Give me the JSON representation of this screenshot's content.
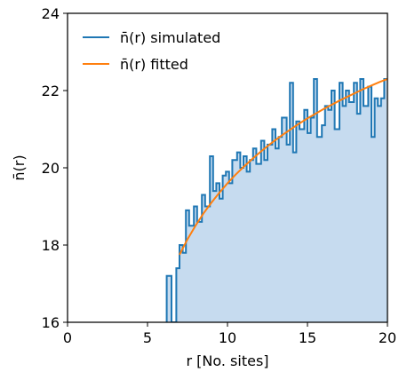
{
  "chart_data": {
    "type": "line",
    "title": "",
    "xlabel": "r [No. sites]",
    "ylabel": "n̄(r)",
    "xlim": [
      0,
      20
    ],
    "ylim": [
      16,
      24
    ],
    "xticks": [
      0,
      5,
      10,
      15,
      20
    ],
    "yticks": [
      16,
      18,
      20,
      22,
      24
    ],
    "xtick_labels": [
      "0",
      "5",
      "10",
      "15",
      "20"
    ],
    "ytick_labels": [
      "16",
      "18",
      "20",
      "22",
      "24"
    ],
    "grid": false,
    "legend_position": "upper-left",
    "series": [
      {
        "name": "n̄(r) simulated",
        "style": "step",
        "color": "#1f77b4",
        "fill_color": "#c6dbef",
        "fill": true,
        "x": [
          6.2,
          6.5,
          6.8,
          7.0,
          7.2,
          7.4,
          7.6,
          7.9,
          8.1,
          8.4,
          8.6,
          8.9,
          9.1,
          9.3,
          9.5,
          9.7,
          9.9,
          10.1,
          10.3,
          10.6,
          10.8,
          11.0,
          11.2,
          11.4,
          11.6,
          11.8,
          12.1,
          12.3,
          12.5,
          12.8,
          13.0,
          13.2,
          13.4,
          13.7,
          13.9,
          14.1,
          14.3,
          14.5,
          14.8,
          15.0,
          15.2,
          15.4,
          15.6,
          15.9,
          16.1,
          16.3,
          16.5,
          16.7,
          17.0,
          17.2,
          17.4,
          17.6,
          17.9,
          18.1,
          18.3,
          18.5,
          18.8,
          19.0,
          19.2,
          19.4,
          19.6,
          19.8
        ],
        "y": [
          17.2,
          16.0,
          17.4,
          18.0,
          17.8,
          18.9,
          18.5,
          19.0,
          18.6,
          19.3,
          19.0,
          20.3,
          19.4,
          19.6,
          19.2,
          19.8,
          19.9,
          19.6,
          20.2,
          20.4,
          20.0,
          20.3,
          19.9,
          20.2,
          20.5,
          20.1,
          20.7,
          20.2,
          20.6,
          21.0,
          20.5,
          20.8,
          21.3,
          20.6,
          22.2,
          20.4,
          21.2,
          21.0,
          21.5,
          20.9,
          21.3,
          22.3,
          20.8,
          21.1,
          21.6,
          21.5,
          22.0,
          21.0,
          22.2,
          21.6,
          22.0,
          21.7,
          22.2,
          21.4,
          22.3,
          21.6,
          22.1,
          20.8,
          21.8,
          21.6,
          21.8,
          22.3
        ]
      },
      {
        "name": "n̄(r) fitted",
        "style": "line",
        "color": "#ff7f0e",
        "x": [
          7.0,
          7.5,
          8.0,
          8.5,
          9.0,
          9.5,
          10.0,
          10.5,
          11.0,
          11.5,
          12.0,
          12.5,
          13.0,
          13.5,
          14.0,
          14.5,
          15.0,
          15.5,
          16.0,
          16.5,
          17.0,
          17.5,
          18.0,
          18.5,
          19.0,
          19.5,
          20.0
        ],
        "y": [
          17.75,
          18.15,
          18.5,
          18.82,
          19.1,
          19.36,
          19.6,
          19.82,
          20.02,
          20.21,
          20.39,
          20.56,
          20.72,
          20.87,
          21.01,
          21.15,
          21.28,
          21.4,
          21.52,
          21.63,
          21.74,
          21.84,
          21.94,
          22.04,
          22.13,
          22.22,
          22.3
        ]
      }
    ]
  }
}
